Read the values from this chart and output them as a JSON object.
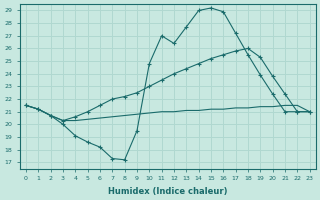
{
  "xlabel": "Humidex (Indice chaleur)",
  "xlim": [
    -0.5,
    23.5
  ],
  "ylim": [
    16.5,
    29.5
  ],
  "yticks": [
    17,
    18,
    19,
    20,
    21,
    22,
    23,
    24,
    25,
    26,
    27,
    28,
    29
  ],
  "xticks": [
    0,
    1,
    2,
    3,
    4,
    5,
    6,
    7,
    8,
    9,
    10,
    11,
    12,
    13,
    14,
    15,
    16,
    17,
    18,
    19,
    20,
    21,
    22,
    23
  ],
  "bg_color": "#c8e8e0",
  "line_color": "#1a6b6b",
  "grid_color": "#b0d8d0",
  "line1_x": [
    0,
    1,
    2,
    3,
    4,
    5,
    6,
    7,
    8,
    9,
    10,
    11,
    12,
    13,
    14,
    15,
    16,
    17,
    18,
    19,
    20,
    21,
    22,
    23
  ],
  "line1_y": [
    21.5,
    21.2,
    20.7,
    20.0,
    19.1,
    18.6,
    18.2,
    17.3,
    17.2,
    19.5,
    24.8,
    27.0,
    26.4,
    27.7,
    29.0,
    29.2,
    28.9,
    27.2,
    25.5,
    23.9,
    22.4,
    21.0,
    21.0,
    21.0
  ],
  "line2_x": [
    0,
    1,
    2,
    3,
    4,
    5,
    6,
    7,
    8,
    9,
    10,
    11,
    12,
    13,
    14,
    15,
    16,
    17,
    18,
    19,
    20,
    21,
    22,
    23
  ],
  "line2_y": [
    21.5,
    21.2,
    20.7,
    20.3,
    20.6,
    21.0,
    21.5,
    22.0,
    22.2,
    22.5,
    23.0,
    23.5,
    24.0,
    24.4,
    24.8,
    25.2,
    25.5,
    25.8,
    26.0,
    25.3,
    23.8,
    22.4,
    21.0,
    21.0
  ],
  "line3_x": [
    0,
    1,
    2,
    3,
    4,
    5,
    6,
    7,
    8,
    9,
    10,
    11,
    12,
    13,
    14,
    15,
    16,
    17,
    18,
    19,
    20,
    21,
    22,
    23
  ],
  "line3_y": [
    21.5,
    21.2,
    20.7,
    20.3,
    20.3,
    20.4,
    20.5,
    20.6,
    20.7,
    20.8,
    20.9,
    21.0,
    21.0,
    21.1,
    21.1,
    21.2,
    21.2,
    21.3,
    21.3,
    21.4,
    21.4,
    21.5,
    21.5,
    21.0
  ]
}
